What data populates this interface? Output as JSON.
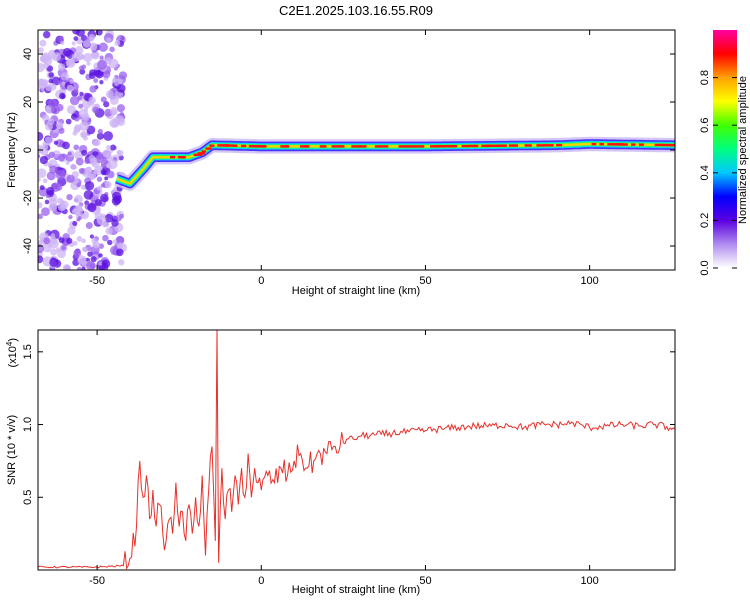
{
  "title": "C2E1.2025.103.16.55.R09",
  "chart_data": [
    {
      "type": "heatmap",
      "xlabel": "Height of straight line (km)",
      "ylabel": "Frequency (Hz)",
      "xlim": [
        -68,
        126
      ],
      "ylim": [
        -50,
        50
      ],
      "xticks": [
        -50,
        0,
        50,
        100
      ],
      "yticks": [
        -40,
        -20,
        0,
        20,
        40
      ],
      "colorbar": {
        "label": "Normalized spectral amplitude",
        "range": [
          0,
          1
        ],
        "ticks": [
          "0.0",
          "0.2",
          "0.4",
          "0.6",
          "0.8"
        ],
        "colors": [
          "#ffffff",
          "#b08cf0",
          "#5a00e0",
          "#0000ff",
          "#00c8ff",
          "#00ff80",
          "#40ff00",
          "#ffff00",
          "#ffa000",
          "#ff0000",
          "#ff00a0"
        ]
      },
      "ridge": {
        "description_points": [
          {
            "x": -44,
            "y": -12
          },
          {
            "x": -40,
            "y": -14
          },
          {
            "x": -36,
            "y": -8
          },
          {
            "x": -33,
            "y": -3
          },
          {
            "x": -28,
            "y": -3
          },
          {
            "x": -22,
            "y": -3
          },
          {
            "x": -18,
            "y": -1
          },
          {
            "x": -15,
            "y": 2
          },
          {
            "x": 0,
            "y": 1.5
          },
          {
            "x": 50,
            "y": 1.5
          },
          {
            "x": 90,
            "y": 2
          },
          {
            "x": 100,
            "y": 2.5
          },
          {
            "x": 126,
            "y": 2
          }
        ],
        "noise_x_range": [
          -68,
          -42
        ]
      }
    },
    {
      "type": "line",
      "xlabel": "Height of straight line (km)",
      "ylabel": "SNR (10 * v/v)",
      "y_multiplier_label": "(x10",
      "y_multiplier_exp": "4",
      "y_multiplier_close": ")",
      "xlim": [
        -68,
        126
      ],
      "ylim": [
        0,
        16500
      ],
      "xticks": [
        -50,
        0,
        50,
        100
      ],
      "yticks": [
        0.5,
        1.0,
        1.5
      ],
      "ytick_labels": [
        "0.5",
        "1.0",
        "1.5"
      ],
      "color": "#e8302a",
      "series": [
        {
          "x": [
            -68,
            -50,
            -42,
            -40,
            -38,
            -37,
            -36,
            -35,
            -34,
            -33,
            -32,
            -31,
            -30,
            -29,
            -28,
            -27,
            -26,
            -25,
            -24,
            -23,
            -22,
            -21,
            -20,
            -19,
            -18,
            -17,
            -16,
            -15,
            -14,
            -13.5,
            -13,
            -12,
            -11,
            -10,
            -9,
            -8,
            -7,
            -6,
            -5,
            -4,
            -3,
            -2,
            -1,
            0,
            2,
            4,
            6,
            8,
            10,
            12,
            14,
            16,
            18,
            20,
            22,
            24,
            26,
            28,
            30,
            35,
            40,
            45,
            50,
            55,
            60,
            65,
            70,
            75,
            80,
            85,
            90,
            95,
            100,
            105,
            110,
            115,
            120,
            126
          ],
          "y": [
            200,
            200,
            300,
            800,
            3000,
            7500,
            5000,
            6500,
            3500,
            5500,
            3000,
            4500,
            2500,
            2000,
            3500,
            2500,
            6000,
            3000,
            4000,
            2000,
            4500,
            2500,
            5000,
            3000,
            6500,
            1000,
            5500,
            8500,
            2000,
            16500,
            500,
            7000,
            3500,
            5500,
            4000,
            6500,
            4500,
            7000,
            5000,
            8000,
            5000,
            7000,
            6000,
            5500,
            6500,
            6000,
            7000,
            6500,
            7500,
            8000,
            7000,
            7500,
            8000,
            8000,
            8500,
            8500,
            9000,
            9000,
            9200,
            9300,
            9400,
            9500,
            9600,
            9700,
            9800,
            9900,
            9900,
            10000,
            9800,
            10000,
            10000,
            10100,
            9800,
            9900,
            10000,
            9900,
            10000,
            9700
          ]
        }
      ]
    }
  ]
}
